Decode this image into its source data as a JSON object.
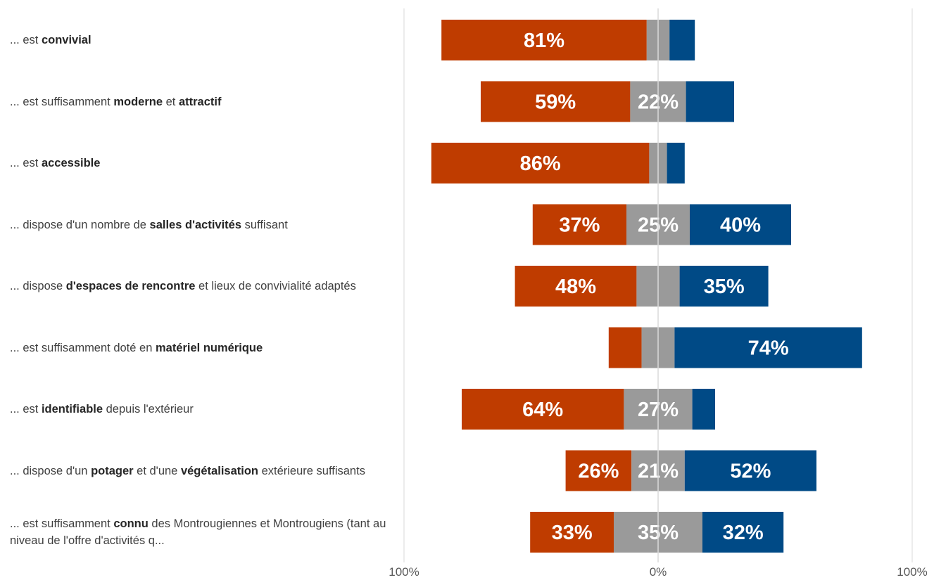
{
  "chart_data": {
    "type": "bar",
    "orientation": "horizontal",
    "stacked": "diverging",
    "rows": [
      {
        "segments": [
          {
            "text": "... est "
          },
          {
            "text": "convivial",
            "bold": true
          }
        ],
        "negative": 81,
        "neutral": 9,
        "positive": 10,
        "labels": {
          "negative": "81%",
          "neutral": "",
          "positive": ""
        }
      },
      {
        "segments": [
          {
            "text": "... est suffisamment "
          },
          {
            "text": "moderne",
            "bold": true
          },
          {
            "text": " et "
          },
          {
            "text": "attractif",
            "bold": true
          }
        ],
        "negative": 59,
        "neutral": 22,
        "positive": 19,
        "labels": {
          "negative": "59%",
          "neutral": "22%",
          "positive": ""
        }
      },
      {
        "segments": [
          {
            "text": "... est "
          },
          {
            "text": "accessible",
            "bold": true
          }
        ],
        "negative": 86,
        "neutral": 7,
        "positive": 7,
        "labels": {
          "negative": "86%",
          "neutral": "",
          "positive": ""
        }
      },
      {
        "segments": [
          {
            "text": "... dispose d'un nombre de "
          },
          {
            "text": "salles d'activités",
            "bold": true
          },
          {
            "text": " suffisant"
          }
        ],
        "negative": 37,
        "neutral": 25,
        "positive": 40,
        "labels": {
          "negative": "37%",
          "neutral": "25%",
          "positive": "40%"
        }
      },
      {
        "segments": [
          {
            "text": "... dispose "
          },
          {
            "text": "d'espaces de rencontre",
            "bold": true
          },
          {
            "text": " et lieux de convivialité adaptés"
          }
        ],
        "negative": 48,
        "neutral": 17,
        "positive": 35,
        "labels": {
          "negative": "48%",
          "neutral": "",
          "positive": "35%"
        }
      },
      {
        "segments": [
          {
            "text": "... est suffisamment doté en "
          },
          {
            "text": "matériel numérique",
            "bold": true
          }
        ],
        "negative": 13,
        "neutral": 13,
        "positive": 74,
        "labels": {
          "negative": "",
          "neutral": "",
          "positive": "74%"
        }
      },
      {
        "segments": [
          {
            "text": "... est "
          },
          {
            "text": "identifiable",
            "bold": true
          },
          {
            "text": " depuis l'extérieur"
          }
        ],
        "negative": 64,
        "neutral": 27,
        "positive": 9,
        "labels": {
          "negative": "64%",
          "neutral": "27%",
          "positive": ""
        }
      },
      {
        "segments": [
          {
            "text": "... dispose d'un "
          },
          {
            "text": "potager",
            "bold": true
          },
          {
            "text": " et d'une "
          },
          {
            "text": "végétalisation",
            "bold": true
          },
          {
            "text": " extérieure suffisants"
          }
        ],
        "negative": 26,
        "neutral": 21,
        "positive": 52,
        "labels": {
          "negative": "26%",
          "neutral": "21%",
          "positive": "52%"
        }
      },
      {
        "segments": [
          {
            "text": "... est suffisamment "
          },
          {
            "text": "connu",
            "bold": true
          },
          {
            "text": " des Montrougiennes et Montrougiens (tant au niveau de l'offre d'activités q..."
          }
        ],
        "negative": 33,
        "neutral": 35,
        "positive": 32,
        "labels": {
          "negative": "33%",
          "neutral": "35%",
          "positive": "32%"
        }
      }
    ],
    "xlim": [
      -100,
      100
    ],
    "x_tick_labels": [
      "100%",
      "0%",
      "100%"
    ],
    "grid": true,
    "colors": {
      "negative": "#BF3C00",
      "neutral": "#9A9A9A",
      "positive": "#004A86",
      "grid": "#D9D9D9",
      "zero_line": "#DADADA"
    }
  }
}
